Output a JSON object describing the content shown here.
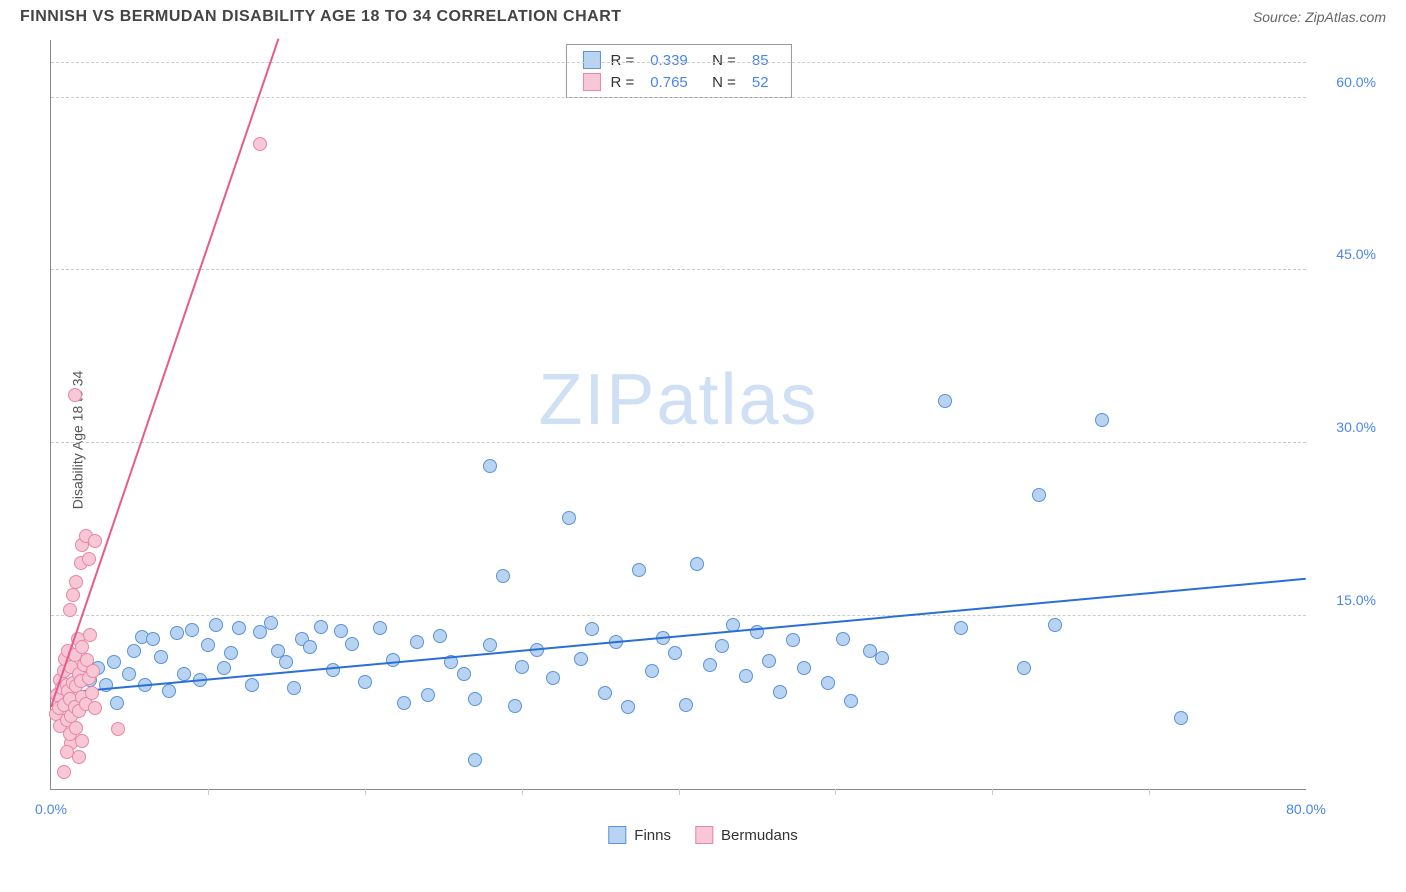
{
  "header": {
    "title": "FINNISH VS BERMUDAN DISABILITY AGE 18 TO 34 CORRELATION CHART",
    "source_label": "Source: ZipAtlas.com"
  },
  "chart": {
    "type": "scatter",
    "ylabel": "Disability Age 18 to 34",
    "watermark": {
      "bold": "ZIP",
      "rest": "atlas"
    },
    "xlim": [
      0,
      80
    ],
    "ylim": [
      0,
      65
    ],
    "xticks": [
      {
        "v": 0,
        "label": "0.0%"
      },
      {
        "v": 80,
        "label": "80.0%"
      }
    ],
    "xgrid_minor": [
      10,
      20,
      30,
      40,
      50,
      60,
      70
    ],
    "yticks": [
      {
        "v": 15,
        "label": "15.0%"
      },
      {
        "v": 30,
        "label": "30.0%"
      },
      {
        "v": 45,
        "label": "45.0%"
      },
      {
        "v": 60,
        "label": "60.0%"
      }
    ],
    "background_color": "#ffffff",
    "grid_color": "#cccccc",
    "axis_color": "#888888",
    "series": [
      {
        "name": "Finns",
        "fill": "#b9d4f3",
        "stroke": "#5b93d6",
        "trend_color": "#2a6fd6",
        "r_value": "0.339",
        "n_value": "85",
        "trend": {
          "x1": 0,
          "y1": 8.2,
          "x2": 80,
          "y2": 18.2
        },
        "points": [
          [
            2,
            8
          ],
          [
            2.5,
            9.5
          ],
          [
            3,
            10.5
          ],
          [
            3.5,
            9
          ],
          [
            4,
            11
          ],
          [
            4.2,
            7.5
          ],
          [
            5,
            10
          ],
          [
            5.3,
            12
          ],
          [
            5.8,
            13.2
          ],
          [
            6,
            9
          ],
          [
            6.5,
            13
          ],
          [
            7,
            11.5
          ],
          [
            7.5,
            8.5
          ],
          [
            8,
            13.5
          ],
          [
            8.5,
            10
          ],
          [
            9,
            13.8
          ],
          [
            9.5,
            9.5
          ],
          [
            10,
            12.5
          ],
          [
            10.5,
            14.2
          ],
          [
            11,
            10.5
          ],
          [
            11.5,
            11.8
          ],
          [
            12,
            14
          ],
          [
            12.8,
            9
          ],
          [
            13.3,
            13.6
          ],
          [
            14,
            14.4
          ],
          [
            14.5,
            12
          ],
          [
            15,
            11
          ],
          [
            15.5,
            8.8
          ],
          [
            16,
            13
          ],
          [
            16.5,
            12.3
          ],
          [
            17.2,
            14.1
          ],
          [
            18,
            10.3
          ],
          [
            18.5,
            13.7
          ],
          [
            19.2,
            12.6
          ],
          [
            20,
            9.3
          ],
          [
            21,
            14.0
          ],
          [
            21.8,
            11.2
          ],
          [
            22.5,
            7.5
          ],
          [
            23.3,
            12.8
          ],
          [
            24,
            8.2
          ],
          [
            24.8,
            13.3
          ],
          [
            25.5,
            11
          ],
          [
            26.3,
            10
          ],
          [
            27,
            7.8
          ],
          [
            27,
            2.5
          ],
          [
            28,
            12.5
          ],
          [
            28.8,
            18.5
          ],
          [
            29.6,
            7.2
          ],
          [
            30,
            10.6
          ],
          [
            31,
            12.1
          ],
          [
            28,
            28
          ],
          [
            32,
            9.6
          ],
          [
            33,
            23.5
          ],
          [
            33.8,
            11.3
          ],
          [
            34.5,
            13.9
          ],
          [
            35.3,
            8.3
          ],
          [
            36,
            12.8
          ],
          [
            36.8,
            7.1
          ],
          [
            37.5,
            19
          ],
          [
            38.3,
            10.2
          ],
          [
            39,
            13.1
          ],
          [
            39.8,
            11.8
          ],
          [
            40.5,
            7.3
          ],
          [
            41.2,
            19.5
          ],
          [
            42,
            10.8
          ],
          [
            42.8,
            12.4
          ],
          [
            43.5,
            14.2
          ],
          [
            44.3,
            9.8
          ],
          [
            45,
            13.6
          ],
          [
            45.8,
            11.1
          ],
          [
            46.5,
            8.4
          ],
          [
            47.3,
            12.9
          ],
          [
            48,
            10.5
          ],
          [
            49.5,
            9.2
          ],
          [
            50.5,
            13.0
          ],
          [
            51,
            7.6
          ],
          [
            52.2,
            12.0
          ],
          [
            53,
            11.4
          ],
          [
            57,
            33.7
          ],
          [
            58,
            14.0
          ],
          [
            62,
            10.5
          ],
          [
            63,
            25.5
          ],
          [
            64,
            14.2
          ],
          [
            67,
            32.0
          ],
          [
            72,
            6.2
          ]
        ]
      },
      {
        "name": "Bermudans",
        "fill": "#f7c7d6",
        "stroke": "#e887a7",
        "trend_color": "#e75a8d",
        "r_value": "0.765",
        "n_value": "52",
        "trend": {
          "x1": 0,
          "y1": 7.0,
          "x2": 14.5,
          "y2": 65
        },
        "points": [
          [
            0.3,
            6.5
          ],
          [
            0.4,
            8.2
          ],
          [
            0.5,
            7.0
          ],
          [
            0.6,
            9.5
          ],
          [
            0.6,
            5.5
          ],
          [
            0.7,
            8.8
          ],
          [
            0.8,
            10.2
          ],
          [
            0.8,
            7.3
          ],
          [
            0.9,
            11.3
          ],
          [
            1.0,
            6.0
          ],
          [
            1.0,
            9.0
          ],
          [
            1.1,
            12.0
          ],
          [
            1.1,
            8.5
          ],
          [
            1.2,
            7.8
          ],
          [
            1.3,
            10.6
          ],
          [
            1.3,
            6.3
          ],
          [
            1.4,
            9.2
          ],
          [
            1.5,
            11.6
          ],
          [
            1.5,
            7.1
          ],
          [
            1.6,
            8.9
          ],
          [
            1.7,
            13.0
          ],
          [
            1.8,
            10.0
          ],
          [
            1.8,
            6.8
          ],
          [
            1.3,
            4.0
          ],
          [
            1.9,
            9.4
          ],
          [
            2.0,
            12.3
          ],
          [
            2.0,
            8.0
          ],
          [
            2.1,
            10.8
          ],
          [
            2.2,
            7.4
          ],
          [
            2.3,
            11.2
          ],
          [
            2.4,
            9.6
          ],
          [
            2.5,
            13.4
          ],
          [
            2.6,
            8.3
          ],
          [
            2.7,
            10.2
          ],
          [
            2.8,
            7.0
          ],
          [
            1.2,
            15.5
          ],
          [
            1.4,
            16.8
          ],
          [
            1.6,
            18.0
          ],
          [
            1.9,
            19.6
          ],
          [
            2.0,
            21.2
          ],
          [
            2.2,
            22.0
          ],
          [
            0.8,
            1.5
          ],
          [
            1.0,
            3.2
          ],
          [
            1.2,
            4.8
          ],
          [
            1.6,
            5.3
          ],
          [
            1.8,
            2.8
          ],
          [
            2.0,
            4.2
          ],
          [
            4.3,
            5.2
          ],
          [
            2.4,
            20.0
          ],
          [
            2.8,
            21.5
          ],
          [
            1.5,
            34.2
          ],
          [
            13.3,
            56.0
          ]
        ]
      }
    ],
    "legend_bottom": [
      "Finns",
      "Bermudans"
    ]
  }
}
